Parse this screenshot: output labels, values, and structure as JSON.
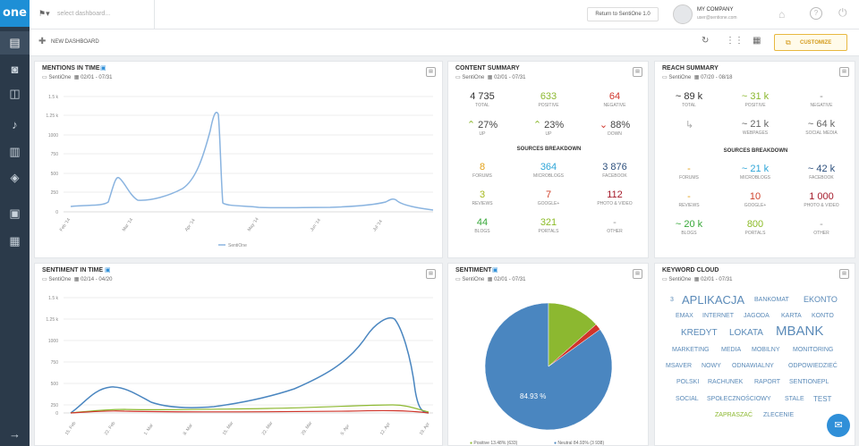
{
  "app": {
    "logo": "one"
  },
  "topbar": {
    "dashboard_placeholder": "select dashboard...",
    "return_label": "Return to SentiOne 1.0",
    "company_name": "MY COMPANY",
    "company_email": "user@sentione.com"
  },
  "toolbar": {
    "new_dashboard": "NEW DASHBOARD",
    "customize": "CUSTOMIZE"
  },
  "mentions": {
    "title": "MENTIONS IN TIME",
    "source": "SentiOne",
    "dates": "02/01 - 07/31",
    "legend": "SentiOne",
    "y_ticks": [
      "1.5 k",
      "1.25 k",
      "1000",
      "750",
      "500",
      "250",
      "0"
    ],
    "x_ticks": [
      "Feb '14",
      "Mar '14",
      "Apr '14",
      "May '14",
      "Jun '14",
      "Jul '14"
    ]
  },
  "content": {
    "title": "CONTENT SUMMARY",
    "source": "SentiOne",
    "dates": "02/01 - 07/31",
    "total": "4 735",
    "total_l": "TOTAL",
    "positive": "633",
    "positive_l": "POSITIVE",
    "negative": "64",
    "negative_l": "NEGATIVE",
    "up1": "27%",
    "up1_l": "UP",
    "up2": "23%",
    "up2_l": "UP",
    "down": "88%",
    "down_l": "DOWN",
    "breakdown": "SOURCES BREAKDOWN",
    "sources": [
      {
        "v": "8",
        "l": "FORUMS",
        "c": "#e3a118"
      },
      {
        "v": "364",
        "l": "MICROBLOGS",
        "c": "#2fa6d8"
      },
      {
        "v": "3 876",
        "l": "FACEBOOK",
        "c": "#2c4f7c"
      },
      {
        "v": "3",
        "l": "REVIEWS",
        "c": "#a5b81c"
      },
      {
        "v": "7",
        "l": "GOOGLE+",
        "c": "#d0422b"
      },
      {
        "v": "112",
        "l": "PHOTO & VIDEO",
        "c": "#a51a2a"
      },
      {
        "v": "44",
        "l": "BLOGS",
        "c": "#38a83a"
      },
      {
        "v": "321",
        "l": "PORTALS",
        "c": "#8cbb27"
      },
      {
        "v": "-",
        "l": "OTHER",
        "c": "#999999"
      }
    ]
  },
  "reach": {
    "title": "REACH SUMMARY",
    "source": "SentiOne",
    "dates": "07/20 - 08/18",
    "total": "~ 89 k",
    "total_l": "TOTAL",
    "positive": "~ 31 k",
    "positive_l": "POSITIVE",
    "negative": "-",
    "negative_l": "NEGATIVE",
    "webpages": "~ 21 k",
    "webpages_l": "WEBPAGES",
    "social": "~ 64 k",
    "social_l": "SOCIAL MEDIA",
    "breakdown": "SOURCES BREAKDOWN",
    "sources": [
      {
        "v": "-",
        "l": "FORUMS",
        "c": "#e3a118"
      },
      {
        "v": "~ 21 k",
        "l": "MICROBLOGS",
        "c": "#2fa6d8"
      },
      {
        "v": "~ 42 k",
        "l": "FACEBOOK",
        "c": "#2c4f7c"
      },
      {
        "v": "-",
        "l": "REVIEWS",
        "c": "#e3a118"
      },
      {
        "v": "10",
        "l": "GOOGLE+",
        "c": "#d0422b"
      },
      {
        "v": "1 000",
        "l": "PHOTO & VIDEO",
        "c": "#a51a2a"
      },
      {
        "v": "~ 20 k",
        "l": "BLOGS",
        "c": "#38a83a"
      },
      {
        "v": "800",
        "l": "PORTALS",
        "c": "#8cbb27"
      },
      {
        "v": "-",
        "l": "OTHER",
        "c": "#999999"
      }
    ]
  },
  "sentiment_time": {
    "title": "SENTIMENT IN TIME",
    "source": "SentiOne",
    "dates": "02/14 - 04/20",
    "y_ticks": [
      "1.5 k",
      "1.25 k",
      "1000",
      "750",
      "500",
      "250",
      "0"
    ],
    "x_ticks": [
      "15. Feb",
      "22. Feb",
      "1. Mar",
      "8. Mar",
      "15. Mar",
      "22. Mar",
      "29. Mar",
      "5. Apr",
      "12. Apr",
      "19. Apr"
    ]
  },
  "sentiment": {
    "title": "SENTIMENT",
    "source": "SentiOne",
    "dates": "02/01 - 07/31",
    "label": "84.93 %",
    "legend_pos": "Positive 13.48% (633)",
    "legend_neu": "Neutral 84.93% (3 938)"
  },
  "chart_data": [
    {
      "type": "pie",
      "labels": [
        "Neutral",
        "Positive",
        "Negative"
      ],
      "values": [
        84.93,
        13.48,
        1.59
      ],
      "colors": [
        "#4a86c0",
        "#8cb830",
        "#d0352b"
      ]
    }
  ],
  "keywords": {
    "title": "KEYWORD CLOUD",
    "source": "SentiOne",
    "dates": "02/01 - 07/31",
    "words": [
      "3",
      "APLIKACJA",
      "BANKOMAT",
      "EKONTO",
      "EMAX",
      "INTERNET",
      "JAGODA",
      "KARTA",
      "KONTO",
      "KREDYT",
      "LOKATA",
      "MBANK",
      "MARKETING",
      "MEDIA",
      "MOBILNY",
      "MONITORING",
      "MSAVER",
      "NOWY",
      "ODNAWIALNY",
      "ODPOWIEDZIEĆ",
      "POLSKI",
      "RACHUNEK",
      "RAPORT",
      "SENTIONEPL",
      "SOCIAL",
      "SPOŁECZNOŚCIOWY",
      "STALE",
      "TEST",
      "ZAPRASZAĆ",
      "ZLECENIE"
    ]
  }
}
